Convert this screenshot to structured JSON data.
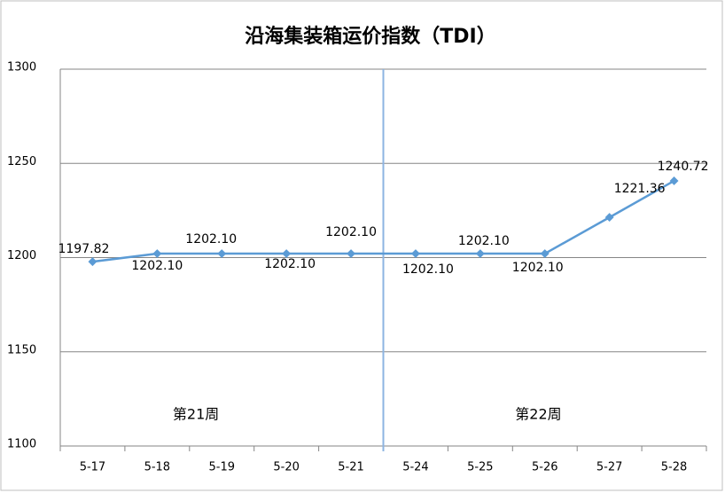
{
  "chart_data": {
    "type": "line",
    "title": "沿海集装箱运价指数（TDI）",
    "categories": [
      "5-17",
      "5-18",
      "5-19",
      "5-20",
      "5-21",
      "5-24",
      "5-25",
      "5-26",
      "5-27",
      "5-28"
    ],
    "series": [
      {
        "name": "TDI",
        "color": "#5b9bd5",
        "values": [
          1197.82,
          1202.1,
          1202.1,
          1202.1,
          1202.1,
          1202.1,
          1202.1,
          1202.1,
          1221.36,
          1240.72
        ],
        "value_labels": [
          "1197.82",
          "1202.10",
          "1202.10",
          "1202.10",
          "1202.10",
          "1202.10",
          "1202.10",
          "1202.10",
          "1221.36",
          "1240.72"
        ]
      }
    ],
    "ylim": [
      1100,
      1300
    ],
    "yticks": [
      1100,
      1150,
      1200,
      1250,
      1300
    ],
    "grid": true,
    "annotations": [
      "第21周",
      "第22周"
    ]
  }
}
